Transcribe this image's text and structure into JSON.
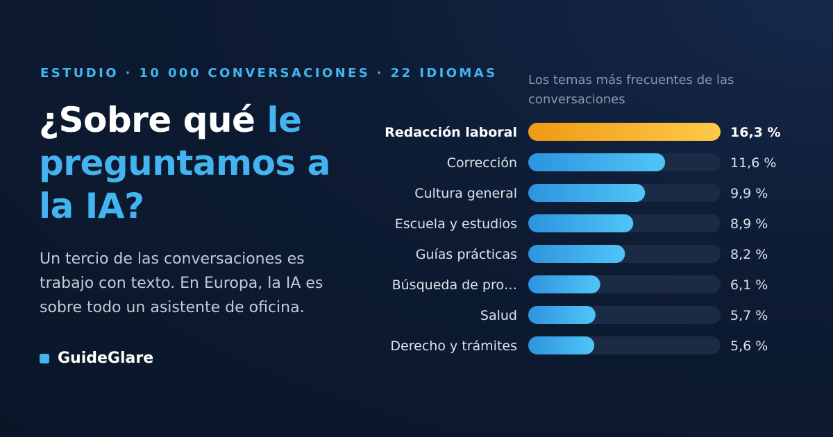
{
  "header": {
    "kicker": "ESTUDIO · 10 000 CONVERSACIONES · 22 IDIOMAS",
    "headline_part1": "¿Sobre qué ",
    "headline_accent": "le preguntamos a la IA?",
    "subtext": "Un tercio de las conversaciones es trabajo con texto. En Europa, la IA es sobre todo un asistente de oficina."
  },
  "brand": {
    "name": "GuideGlare",
    "icon": "square-icon"
  },
  "colors": {
    "accent": "#43b4f0",
    "highlight_start": "#ee9a14",
    "highlight_end": "#ffc94a",
    "bar_start": "#2d93df",
    "bar_end": "#50c5f6",
    "track": "#1c2b45"
  },
  "chart_data": {
    "type": "bar",
    "orientation": "horizontal",
    "title": "Los temas más frecuentes de las conversaciones",
    "categories": [
      "Redacción laboral",
      "Corrección",
      "Cultura general",
      "Escuela y estudios",
      "Guías prácticas",
      "Búsqueda de pro…",
      "Salud",
      "Derecho y trámites"
    ],
    "values": [
      16.3,
      11.6,
      9.9,
      8.9,
      8.2,
      6.1,
      5.7,
      5.6
    ],
    "value_labels": [
      "16,3 %",
      "11,6 %",
      "9,9 %",
      "8,9 %",
      "8,2 %",
      "6,1 %",
      "5,7 %",
      "5,6 %"
    ],
    "highlighted_index": 0,
    "xlim": [
      0,
      16.3
    ]
  }
}
